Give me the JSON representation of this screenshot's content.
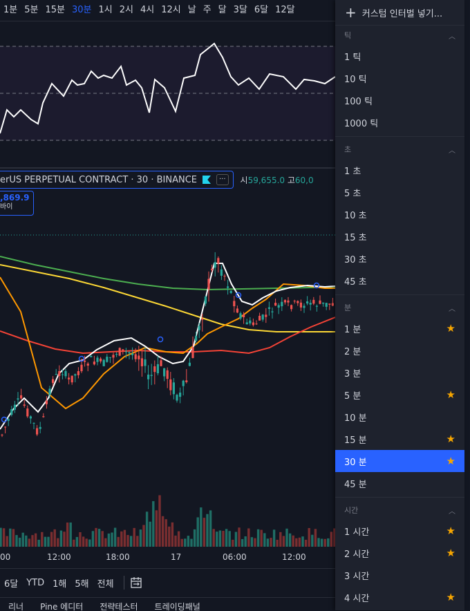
{
  "toolbar": {
    "timeframes": [
      {
        "label": "1분",
        "active": false
      },
      {
        "label": "5분",
        "active": false
      },
      {
        "label": "15분",
        "active": false
      },
      {
        "label": "30분",
        "active": true
      },
      {
        "label": "1시",
        "active": false
      },
      {
        "label": "2시",
        "active": false
      },
      {
        "label": "4시",
        "active": false
      },
      {
        "label": "12시",
        "active": false
      },
      {
        "label": "날",
        "active": false
      },
      {
        "label": "주",
        "active": false
      },
      {
        "label": "달",
        "active": false
      },
      {
        "label": "3달",
        "active": false
      },
      {
        "label": "6달",
        "active": false
      },
      {
        "label": "12달",
        "active": false
      }
    ]
  },
  "legend": {
    "title": "erUS PERPETUAL CONTRACT · 30 · BINANCE",
    "dots": "···",
    "open_label": "시",
    "open_value": "59,655.0",
    "high_label": "고",
    "high_value": "60,0"
  },
  "buy": {
    "price": ",869.9",
    "label": "바이"
  },
  "xaxis": [
    "00",
    "12:00",
    "18:00",
    "17",
    "06:00",
    "12:00"
  ],
  "range": [
    "6달",
    "YTD",
    "1해",
    "5해",
    "전체"
  ],
  "bottom_tabs": [
    "리너",
    "Pine 에디터",
    "전략테스터",
    "트레이딩패널"
  ],
  "menu": {
    "add_label": "커스텀 인터벌 넣기...",
    "sections": [
      {
        "title": "틱",
        "items": [
          {
            "label": "1 틱",
            "fav": false,
            "selected": false
          },
          {
            "label": "10 틱",
            "fav": false,
            "selected": false
          },
          {
            "label": "100 틱",
            "fav": false,
            "selected": false
          },
          {
            "label": "1000 틱",
            "fav": false,
            "selected": false
          }
        ]
      },
      {
        "title": "초",
        "items": [
          {
            "label": "1 초",
            "fav": false,
            "selected": false
          },
          {
            "label": "5 초",
            "fav": false,
            "selected": false
          },
          {
            "label": "10 초",
            "fav": false,
            "selected": false
          },
          {
            "label": "15 초",
            "fav": false,
            "selected": false
          },
          {
            "label": "30 초",
            "fav": false,
            "selected": false
          },
          {
            "label": "45 초",
            "fav": false,
            "selected": false
          }
        ]
      },
      {
        "title": "분",
        "items": [
          {
            "label": "1 분",
            "fav": true,
            "selected": false
          },
          {
            "label": "2 분",
            "fav": false,
            "selected": false
          },
          {
            "label": "3 분",
            "fav": false,
            "selected": false
          },
          {
            "label": "5 분",
            "fav": true,
            "selected": false
          },
          {
            "label": "10 분",
            "fav": false,
            "selected": false
          },
          {
            "label": "15 분",
            "fav": true,
            "selected": false
          },
          {
            "label": "30 분",
            "fav": true,
            "selected": true
          },
          {
            "label": "45 분",
            "fav": false,
            "selected": false
          }
        ]
      },
      {
        "title": "시간",
        "items": [
          {
            "label": "1 시간",
            "fav": true,
            "selected": false
          },
          {
            "label": "2 시간",
            "fav": true,
            "selected": false
          },
          {
            "label": "3 시간",
            "fav": false,
            "selected": false
          },
          {
            "label": "4 시간",
            "fav": true,
            "selected": false
          }
        ]
      }
    ]
  },
  "colors": {
    "up": "#26a69a",
    "down": "#ef5350",
    "accent": "#2962ff",
    "star": "#f7a600",
    "ma_green": "#4caf50",
    "ma_yellow": "#fdd835",
    "ma_orange": "#ff9800",
    "ma_red": "#f44336",
    "ma_white": "#ffffff"
  }
}
